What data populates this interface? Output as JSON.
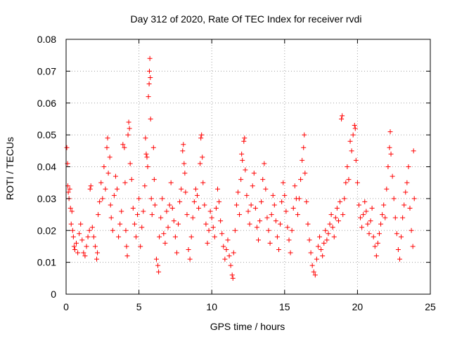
{
  "chart_data": {
    "type": "scatter",
    "title": "Day 312 of 2020, Rate Of TEC Index for receiver rvdi",
    "xlabel": "GPS time / hours",
    "ylabel": "ROTI / TECUs",
    "xlim": [
      0,
      25
    ],
    "ylim": [
      0,
      0.08
    ],
    "x_ticks": [
      "0",
      "5",
      "10",
      "15",
      "20",
      "25"
    ],
    "y_ticks": [
      "0",
      "0.01",
      "0.02",
      "0.03",
      "0.04",
      "0.05",
      "0.06",
      "0.07",
      "0.08"
    ],
    "grid": true,
    "marker": "+",
    "color": "#ff0000",
    "points": [
      [
        0.05,
        0.046
      ],
      [
        0.1,
        0.041
      ],
      [
        0.12,
        0.034
      ],
      [
        0.15,
        0.032
      ],
      [
        0.2,
        0.03
      ],
      [
        0.25,
        0.033
      ],
      [
        0.3,
        0.027
      ],
      [
        0.35,
        0.022
      ],
      [
        0.4,
        0.026
      ],
      [
        0.45,
        0.02
      ],
      [
        0.5,
        0.018
      ],
      [
        0.55,
        0.015
      ],
      [
        0.6,
        0.014
      ],
      [
        0.7,
        0.016
      ],
      [
        0.8,
        0.013
      ],
      [
        0.9,
        0.019
      ],
      [
        1.0,
        0.022
      ],
      [
        1.1,
        0.017
      ],
      [
        1.2,
        0.013
      ],
      [
        1.3,
        0.012
      ],
      [
        1.4,
        0.015
      ],
      [
        1.5,
        0.018
      ],
      [
        1.6,
        0.02
      ],
      [
        1.65,
        0.033
      ],
      [
        1.7,
        0.034
      ],
      [
        1.8,
        0.021
      ],
      [
        1.9,
        0.018
      ],
      [
        2.0,
        0.015
      ],
      [
        2.1,
        0.011
      ],
      [
        2.15,
        0.013
      ],
      [
        2.2,
        0.025
      ],
      [
        2.3,
        0.029
      ],
      [
        2.4,
        0.035
      ],
      [
        2.5,
        0.03
      ],
      [
        2.6,
        0.04
      ],
      [
        2.7,
        0.033
      ],
      [
        2.8,
        0.046
      ],
      [
        2.85,
        0.049
      ],
      [
        2.9,
        0.038
      ],
      [
        3.0,
        0.043
      ],
      [
        3.05,
        0.028
      ],
      [
        3.1,
        0.024
      ],
      [
        3.2,
        0.02
      ],
      [
        3.3,
        0.031
      ],
      [
        3.4,
        0.037
      ],
      [
        3.5,
        0.033
      ],
      [
        3.6,
        0.018
      ],
      [
        3.7,
        0.022
      ],
      [
        3.8,
        0.026
      ],
      [
        3.9,
        0.047
      ],
      [
        4.0,
        0.046
      ],
      [
        4.05,
        0.035
      ],
      [
        4.1,
        0.02
      ],
      [
        4.15,
        0.015
      ],
      [
        4.2,
        0.012
      ],
      [
        4.25,
        0.05
      ],
      [
        4.3,
        0.054
      ],
      [
        4.35,
        0.052
      ],
      [
        4.4,
        0.041
      ],
      [
        4.5,
        0.036
      ],
      [
        4.6,
        0.027
      ],
      [
        4.7,
        0.022
      ],
      [
        4.8,
        0.018
      ],
      [
        4.9,
        0.025
      ],
      [
        5.0,
        0.03
      ],
      [
        5.1,
        0.015
      ],
      [
        5.2,
        0.021
      ],
      [
        5.3,
        0.026
      ],
      [
        5.4,
        0.034
      ],
      [
        5.45,
        0.049
      ],
      [
        5.5,
        0.044
      ],
      [
        5.55,
        0.043
      ],
      [
        5.6,
        0.04
      ],
      [
        5.65,
        0.062
      ],
      [
        5.7,
        0.066
      ],
      [
        5.72,
        0.07
      ],
      [
        5.75,
        0.074
      ],
      [
        5.78,
        0.068
      ],
      [
        5.8,
        0.055
      ],
      [
        5.85,
        0.03
      ],
      [
        5.9,
        0.025
      ],
      [
        6.0,
        0.046
      ],
      [
        6.05,
        0.036
      ],
      [
        6.1,
        0.028
      ],
      [
        6.2,
        0.011
      ],
      [
        6.3,
        0.009
      ],
      [
        6.35,
        0.007
      ],
      [
        6.4,
        0.018
      ],
      [
        6.5,
        0.024
      ],
      [
        6.6,
        0.03
      ],
      [
        6.7,
        0.019
      ],
      [
        6.8,
        0.016
      ],
      [
        6.9,
        0.026
      ],
      [
        7.0,
        0.021
      ],
      [
        7.1,
        0.028
      ],
      [
        7.2,
        0.035
      ],
      [
        7.3,
        0.027
      ],
      [
        7.4,
        0.023
      ],
      [
        7.5,
        0.018
      ],
      [
        7.6,
        0.013
      ],
      [
        7.7,
        0.022
      ],
      [
        7.8,
        0.029
      ],
      [
        7.9,
        0.033
      ],
      [
        8.0,
        0.045
      ],
      [
        8.05,
        0.047
      ],
      [
        8.1,
        0.041
      ],
      [
        8.15,
        0.038
      ],
      [
        8.2,
        0.032
      ],
      [
        8.3,
        0.025
      ],
      [
        8.4,
        0.014
      ],
      [
        8.5,
        0.011
      ],
      [
        8.6,
        0.018
      ],
      [
        8.7,
        0.024
      ],
      [
        8.8,
        0.029
      ],
      [
        8.9,
        0.033
      ],
      [
        9.0,
        0.031
      ],
      [
        9.1,
        0.027
      ],
      [
        9.2,
        0.041
      ],
      [
        9.25,
        0.049
      ],
      [
        9.3,
        0.05
      ],
      [
        9.35,
        0.043
      ],
      [
        9.4,
        0.035
      ],
      [
        9.5,
        0.028
      ],
      [
        9.6,
        0.022
      ],
      [
        9.7,
        0.016
      ],
      [
        9.8,
        0.02
      ],
      [
        9.9,
        0.026
      ],
      [
        10.0,
        0.024
      ],
      [
        10.1,
        0.021
      ],
      [
        10.2,
        0.018
      ],
      [
        10.3,
        0.027
      ],
      [
        10.4,
        0.033
      ],
      [
        10.5,
        0.029
      ],
      [
        10.6,
        0.023
      ],
      [
        10.7,
        0.019
      ],
      [
        10.8,
        0.015
      ],
      [
        10.9,
        0.011
      ],
      [
        11.0,
        0.014
      ],
      [
        11.1,
        0.017
      ],
      [
        11.2,
        0.012
      ],
      [
        11.3,
        0.009
      ],
      [
        11.4,
        0.006
      ],
      [
        11.45,
        0.005
      ],
      [
        11.5,
        0.013
      ],
      [
        11.6,
        0.02
      ],
      [
        11.7,
        0.028
      ],
      [
        11.8,
        0.032
      ],
      [
        11.9,
        0.025
      ],
      [
        12.0,
        0.036
      ],
      [
        12.05,
        0.044
      ],
      [
        12.1,
        0.042
      ],
      [
        12.2,
        0.048
      ],
      [
        12.25,
        0.049
      ],
      [
        12.3,
        0.039
      ],
      [
        12.4,
        0.031
      ],
      [
        12.5,
        0.026
      ],
      [
        12.6,
        0.022
      ],
      [
        12.7,
        0.028
      ],
      [
        12.8,
        0.034
      ],
      [
        12.9,
        0.038
      ],
      [
        13.0,
        0.027
      ],
      [
        13.1,
        0.021
      ],
      [
        13.2,
        0.017
      ],
      [
        13.3,
        0.023
      ],
      [
        13.4,
        0.029
      ],
      [
        13.5,
        0.036
      ],
      [
        13.6,
        0.041
      ],
      [
        13.7,
        0.033
      ],
      [
        13.8,
        0.024
      ],
      [
        13.9,
        0.02
      ],
      [
        14.0,
        0.016
      ],
      [
        14.1,
        0.025
      ],
      [
        14.2,
        0.031
      ],
      [
        14.3,
        0.028
      ],
      [
        14.4,
        0.023
      ],
      [
        14.5,
        0.018
      ],
      [
        14.6,
        0.014
      ],
      [
        14.7,
        0.022
      ],
      [
        14.8,
        0.029
      ],
      [
        14.9,
        0.035
      ],
      [
        15.0,
        0.031
      ],
      [
        15.1,
        0.026
      ],
      [
        15.2,
        0.021
      ],
      [
        15.3,
        0.017
      ],
      [
        15.4,
        0.013
      ],
      [
        15.5,
        0.02
      ],
      [
        15.6,
        0.027
      ],
      [
        15.7,
        0.034
      ],
      [
        15.8,
        0.03
      ],
      [
        15.9,
        0.025
      ],
      [
        16.0,
        0.03
      ],
      [
        16.1,
        0.036
      ],
      [
        16.2,
        0.042
      ],
      [
        16.3,
        0.046
      ],
      [
        16.35,
        0.05
      ],
      [
        16.4,
        0.038
      ],
      [
        16.5,
        0.029
      ],
      [
        16.6,
        0.022
      ],
      [
        16.7,
        0.017
      ],
      [
        16.8,
        0.013
      ],
      [
        16.9,
        0.009
      ],
      [
        17.0,
        0.007
      ],
      [
        17.1,
        0.006
      ],
      [
        17.2,
        0.011
      ],
      [
        17.3,
        0.015
      ],
      [
        17.4,
        0.018
      ],
      [
        17.5,
        0.014
      ],
      [
        17.6,
        0.012
      ],
      [
        17.7,
        0.016
      ],
      [
        17.8,
        0.02
      ],
      [
        17.9,
        0.017
      ],
      [
        18.0,
        0.019
      ],
      [
        18.1,
        0.022
      ],
      [
        18.2,
        0.025
      ],
      [
        18.3,
        0.021
      ],
      [
        18.4,
        0.018
      ],
      [
        18.5,
        0.024
      ],
      [
        18.6,
        0.027
      ],
      [
        18.7,
        0.023
      ],
      [
        18.8,
        0.029
      ],
      [
        18.9,
        0.055
      ],
      [
        18.95,
        0.056
      ],
      [
        19.0,
        0.025
      ],
      [
        19.1,
        0.03
      ],
      [
        19.2,
        0.035
      ],
      [
        19.3,
        0.04
      ],
      [
        19.4,
        0.036
      ],
      [
        19.5,
        0.048
      ],
      [
        19.6,
        0.045
      ],
      [
        19.7,
        0.05
      ],
      [
        19.8,
        0.053
      ],
      [
        19.85,
        0.052
      ],
      [
        19.9,
        0.042
      ],
      [
        20.0,
        0.035
      ],
      [
        20.1,
        0.028
      ],
      [
        20.2,
        0.024
      ],
      [
        20.3,
        0.021
      ],
      [
        20.4,
        0.025
      ],
      [
        20.5,
        0.029
      ],
      [
        20.6,
        0.026
      ],
      [
        20.7,
        0.022
      ],
      [
        20.8,
        0.019
      ],
      [
        20.9,
        0.023
      ],
      [
        21.0,
        0.027
      ],
      [
        21.1,
        0.018
      ],
      [
        21.2,
        0.015
      ],
      [
        21.3,
        0.012
      ],
      [
        21.4,
        0.016
      ],
      [
        21.5,
        0.019
      ],
      [
        21.6,
        0.022
      ],
      [
        21.7,
        0.025
      ],
      [
        21.8,
        0.028
      ],
      [
        21.9,
        0.024
      ],
      [
        22.0,
        0.033
      ],
      [
        22.1,
        0.04
      ],
      [
        22.2,
        0.046
      ],
      [
        22.25,
        0.051
      ],
      [
        22.3,
        0.044
      ],
      [
        22.4,
        0.037
      ],
      [
        22.5,
        0.03
      ],
      [
        22.6,
        0.024
      ],
      [
        22.7,
        0.019
      ],
      [
        22.8,
        0.014
      ],
      [
        22.9,
        0.011
      ],
      [
        23.0,
        0.018
      ],
      [
        23.1,
        0.024
      ],
      [
        23.2,
        0.028
      ],
      [
        23.3,
        0.032
      ],
      [
        23.4,
        0.035
      ],
      [
        23.5,
        0.04
      ],
      [
        23.6,
        0.027
      ],
      [
        23.7,
        0.02
      ],
      [
        23.8,
        0.015
      ],
      [
        23.85,
        0.045
      ],
      [
        23.9,
        0.03
      ]
    ]
  }
}
